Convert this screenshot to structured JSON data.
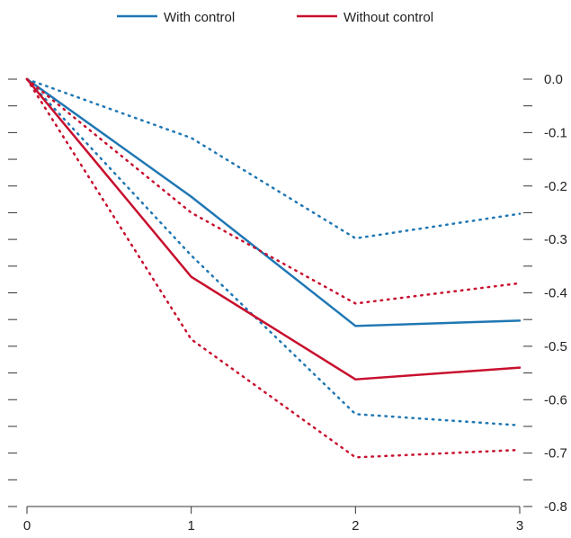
{
  "chart_data": {
    "type": "line",
    "x": [
      0,
      1,
      2,
      3
    ],
    "x_ticks": [
      "0",
      "1",
      "2",
      "3"
    ],
    "xlim": [
      0,
      3
    ],
    "ylim": [
      -0.8,
      0.0
    ],
    "y_ticks": [
      0.0,
      -0.1,
      -0.2,
      -0.3,
      -0.4,
      -0.5,
      -0.6,
      -0.7,
      -0.8
    ],
    "y_tick_labels": [
      "0.0",
      "-0.1",
      "-0.2",
      "-0.3",
      "-0.4",
      "-0.5",
      "-0.6",
      "-0.7",
      "-0.8"
    ],
    "grid": false,
    "legend_position": "top-center",
    "series": [
      {
        "name": "With control",
        "color": "#1f77b4",
        "style": "solid",
        "values": [
          0.0,
          -0.22,
          -0.462,
          -0.452
        ]
      },
      {
        "name": "",
        "color": "#1f77b4",
        "style": "dotted",
        "values": [
          0.0,
          -0.11,
          -0.298,
          -0.252
        ]
      },
      {
        "name": "",
        "color": "#1f77b4",
        "style": "dotted",
        "values": [
          0.0,
          -0.33,
          -0.627,
          -0.648
        ]
      },
      {
        "name": "Without control",
        "color": "#c8102e",
        "style": "solid",
        "values": [
          0.0,
          -0.37,
          -0.562,
          -0.54
        ]
      },
      {
        "name": "",
        "color": "#c8102e",
        "style": "dotted",
        "values": [
          0.0,
          -0.25,
          -0.42,
          -0.382
        ]
      },
      {
        "name": "",
        "color": "#c8102e",
        "style": "dotted",
        "values": [
          0.0,
          -0.487,
          -0.708,
          -0.694
        ]
      }
    ]
  }
}
